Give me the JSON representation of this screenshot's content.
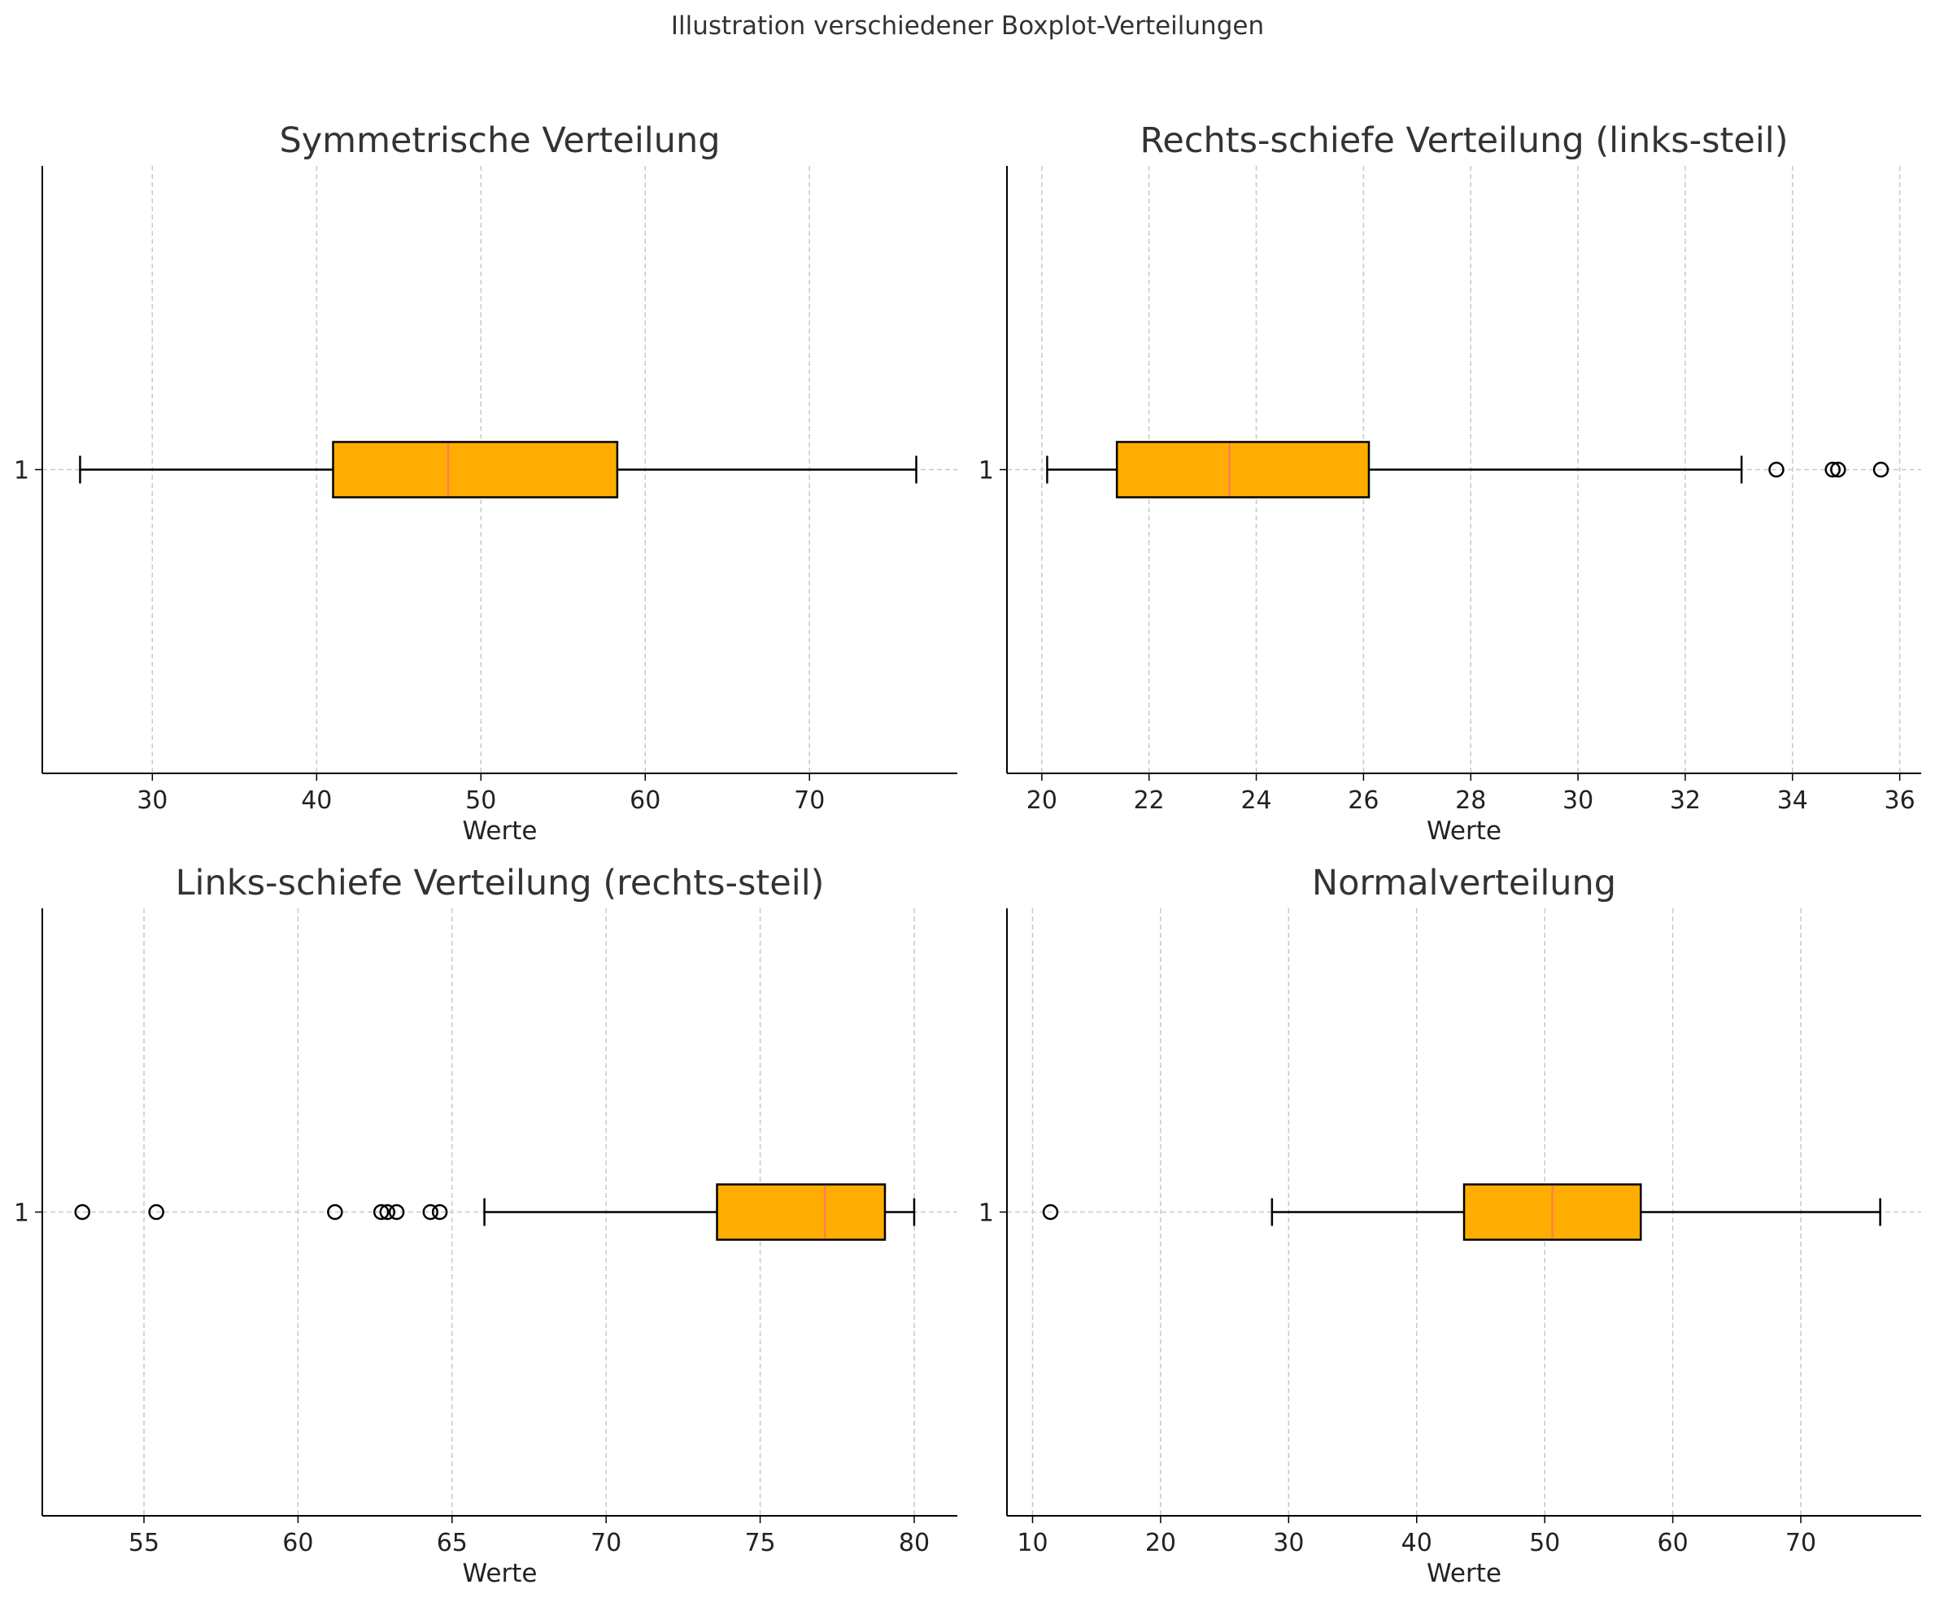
{
  "figure": {
    "suptitle": "Illustration verschiedener Boxplot-Verteilungen",
    "colors": {
      "box_fill": "#ffad00",
      "box_edge": "#000000",
      "median": "#ff7f50",
      "grid": "#c8c8c8",
      "axis": "#000000"
    }
  },
  "chart_data": [
    {
      "type": "boxplot",
      "orientation": "horizontal",
      "title": "Symmetrische Verteilung",
      "xlabel": "Werte",
      "ylabel": "",
      "ytick_labels": [
        "1"
      ],
      "xticks": [
        30,
        40,
        50,
        60,
        70
      ],
      "xlim": [
        23.3,
        79.0
      ],
      "grid": true,
      "box": {
        "whislo": 25.6,
        "q1": 41.0,
        "med": 48.0,
        "q3": 58.3,
        "whishi": 76.5
      },
      "outliers": []
    },
    {
      "type": "boxplot",
      "orientation": "horizontal",
      "title": "Rechts-schiefe Verteilung (links-steil)",
      "xlabel": "Werte",
      "ylabel": "",
      "ytick_labels": [
        "1"
      ],
      "xticks": [
        20,
        22,
        24,
        26,
        28,
        30,
        32,
        34,
        36
      ],
      "xlim": [
        19.35,
        36.4
      ],
      "grid": true,
      "box": {
        "whislo": 20.1,
        "q1": 21.4,
        "med": 23.5,
        "q3": 26.1,
        "whishi": 33.05
      },
      "outliers": [
        33.7,
        34.75,
        34.85,
        35.65
      ]
    },
    {
      "type": "boxplot",
      "orientation": "horizontal",
      "title": "Links-schiefe Verteilung (rechts-steil)",
      "xlabel": "Werte",
      "ylabel": "",
      "ytick_labels": [
        "1"
      ],
      "xticks": [
        55,
        60,
        65,
        70,
        75,
        80
      ],
      "xlim": [
        51.7,
        81.4
      ],
      "grid": true,
      "box": {
        "whislo": 66.05,
        "q1": 73.6,
        "med": 77.1,
        "q3": 79.05,
        "whishi": 80.0
      },
      "outliers": [
        53.0,
        55.4,
        61.2,
        62.7,
        62.9,
        63.2,
        64.3,
        64.6
      ]
    },
    {
      "type": "boxplot",
      "orientation": "horizontal",
      "title": "Normalverteilung",
      "xlabel": "Werte",
      "ylabel": "",
      "ytick_labels": [
        "1"
      ],
      "xticks": [
        10,
        20,
        30,
        40,
        50,
        60,
        70
      ],
      "xlim": [
        8.0,
        79.4
      ],
      "grid": true,
      "box": {
        "whislo": 28.7,
        "q1": 43.7,
        "med": 50.6,
        "q3": 57.5,
        "whishi": 76.2
      },
      "outliers": [
        11.4
      ]
    }
  ]
}
